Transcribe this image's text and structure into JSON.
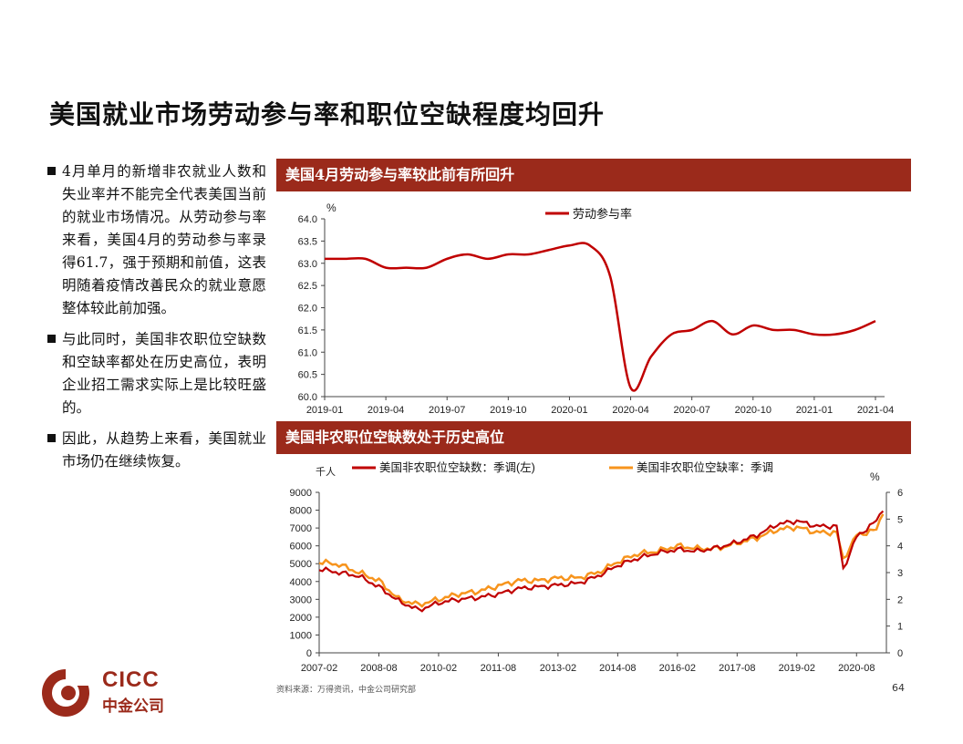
{
  "page": {
    "title": "美国就业市场劳动参与率和职位空缺程度均回升",
    "source": "资料来源：万得资讯，中金公司研究部",
    "page_number": "64"
  },
  "bullets": [
    "4月单月的新增非农就业人数和失业率并不能完全代表美国当前的就业市场情况。从劳动参与率来看，美国4月的劳动参与率录得61.7，强于预期和前值，这表明随着疫情改善民众的就业意愿整体较此前加强。",
    "与此同时，美国非农职位空缺数和空缺率都处在历史高位，表明企业招工需求实际上是比较旺盛的。",
    "因此，从趋势上来看，美国就业市场仍在继续恢复。"
  ],
  "logo": {
    "line1": "CICC",
    "line2": "中金公司"
  },
  "colors": {
    "header_bg": "#9b2a1b",
    "series_red": "#c00000",
    "series_orange": "#f7941d"
  },
  "chart_data": [
    {
      "type": "line",
      "header": "美国4月劳动参与率较此前有所回升",
      "ylabel": "%",
      "ylim": [
        60.0,
        64.0
      ],
      "yticks": [
        "64.0",
        "63.5",
        "63.0",
        "62.5",
        "62.0",
        "61.5",
        "61.0",
        "60.5",
        "60.0"
      ],
      "xticks": [
        "2019-01",
        "2019-04",
        "2019-07",
        "2019-10",
        "2020-01",
        "2020-04",
        "2020-07",
        "2020-10",
        "2021-01",
        "2021-04"
      ],
      "series": [
        {
          "name": "劳动参与率",
          "x": [
            "2019-01",
            "2019-02",
            "2019-03",
            "2019-04",
            "2019-05",
            "2019-06",
            "2019-07",
            "2019-08",
            "2019-09",
            "2019-10",
            "2019-11",
            "2019-12",
            "2020-01",
            "2020-02",
            "2020-03",
            "2020-04",
            "2020-05",
            "2020-06",
            "2020-07",
            "2020-08",
            "2020-09",
            "2020-10",
            "2020-11",
            "2020-12",
            "2021-01",
            "2021-02",
            "2021-03",
            "2021-04"
          ],
          "values": [
            63.1,
            63.1,
            63.1,
            62.9,
            62.9,
            62.9,
            63.1,
            63.2,
            63.1,
            63.2,
            63.2,
            63.3,
            63.4,
            63.4,
            62.7,
            60.2,
            60.9,
            61.4,
            61.5,
            61.7,
            61.4,
            61.6,
            61.5,
            61.5,
            61.4,
            61.4,
            61.5,
            61.7
          ]
        }
      ]
    },
    {
      "type": "line",
      "header": "美国非农职位空缺数处于历史高位",
      "ylabel_left": "千人",
      "ylabel_right": "%",
      "ylim_left": [
        0,
        9000
      ],
      "ylim_right": [
        0,
        6
      ],
      "yticks_left": [
        "9000",
        "8000",
        "7000",
        "6000",
        "5000",
        "4000",
        "3000",
        "2000",
        "1000",
        "0"
      ],
      "yticks_right": [
        "6",
        "5",
        "4",
        "3",
        "2",
        "1",
        "0"
      ],
      "xticks": [
        "2007-02",
        "2008-08",
        "2010-02",
        "2011-08",
        "2013-02",
        "2014-08",
        "2016-02",
        "2017-08",
        "2019-02",
        "2020-08"
      ],
      "series": [
        {
          "name": "美国非农职位空缺数：季调(左)",
          "axis": "left",
          "x": [
            "2007-02",
            "2007-08",
            "2008-02",
            "2008-08",
            "2009-02",
            "2009-08",
            "2010-02",
            "2010-08",
            "2011-02",
            "2011-08",
            "2012-02",
            "2012-08",
            "2013-02",
            "2013-08",
            "2014-02",
            "2014-08",
            "2015-02",
            "2015-08",
            "2016-02",
            "2016-08",
            "2017-02",
            "2017-08",
            "2018-02",
            "2018-08",
            "2019-02",
            "2019-08",
            "2020-02",
            "2020-04",
            "2020-08",
            "2021-02",
            "2021-04"
          ],
          "values": [
            4700,
            4500,
            4300,
            3700,
            2900,
            2400,
            2800,
            3000,
            3100,
            3300,
            3600,
            3700,
            3800,
            3900,
            4300,
            4900,
            5300,
            5600,
            5800,
            5700,
            5900,
            6200,
            6600,
            7200,
            7400,
            7100,
            7100,
            4700,
            6500,
            7400,
            8100
          ]
        },
        {
          "name": "美国非农职位空缺率：季调",
          "axis": "right",
          "x": [
            "2007-02",
            "2007-08",
            "2008-02",
            "2008-08",
            "2009-02",
            "2009-08",
            "2010-02",
            "2010-08",
            "2011-02",
            "2011-08",
            "2012-02",
            "2012-08",
            "2013-02",
            "2013-08",
            "2014-02",
            "2014-08",
            "2015-02",
            "2015-08",
            "2016-02",
            "2016-08",
            "2017-02",
            "2017-08",
            "2018-02",
            "2018-08",
            "2019-02",
            "2019-08",
            "2020-02",
            "2020-04",
            "2020-08",
            "2021-02",
            "2021-04"
          ],
          "values": [
            3.4,
            3.3,
            3.0,
            2.7,
            2.0,
            1.8,
            2.0,
            2.2,
            2.3,
            2.5,
            2.7,
            2.7,
            2.8,
            2.8,
            3.0,
            3.4,
            3.7,
            3.8,
            4.0,
            3.9,
            3.9,
            4.1,
            4.3,
            4.6,
            4.7,
            4.5,
            4.5,
            3.5,
            4.4,
            4.6,
            5.3
          ]
        }
      ]
    }
  ]
}
